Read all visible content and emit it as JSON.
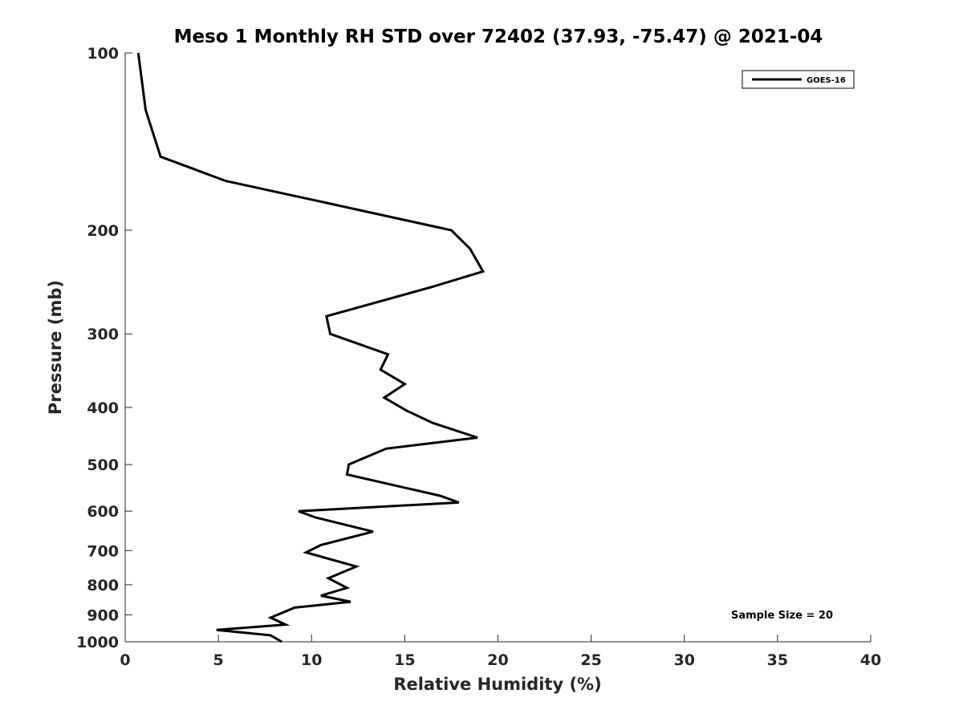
{
  "chart_data": {
    "type": "line",
    "title": "Meso 1 Monthly RH STD over 72402 (37.93, -75.47) @ 2021-04",
    "xlabel": "Relative Humidity (%)",
    "ylabel": "Pressure (mb)",
    "xlim": [
      0,
      40
    ],
    "ylim": [
      100,
      1000
    ],
    "y_scale": "log",
    "y_reversed": true,
    "x_ticks": [
      "0",
      "5",
      "10",
      "15",
      "20",
      "25",
      "30",
      "35",
      "40"
    ],
    "y_ticks": [
      "100",
      "200",
      "300",
      "400",
      "500",
      "600",
      "700",
      "800",
      "900",
      "1000"
    ],
    "grid": false,
    "legend_position": "top-right",
    "annotation": "Sample Size = 20",
    "colors": {
      "series": "#000000",
      "axes": "#262626"
    },
    "series": [
      {
        "name": "GOES-16",
        "points": [
          {
            "x": 0.7,
            "y": 100
          },
          {
            "x": 1.1,
            "y": 125
          },
          {
            "x": 1.9,
            "y": 150
          },
          {
            "x": 5.4,
            "y": 165
          },
          {
            "x": 10.9,
            "y": 180
          },
          {
            "x": 17.5,
            "y": 200
          },
          {
            "x": 18.5,
            "y": 215
          },
          {
            "x": 19.2,
            "y": 235
          },
          {
            "x": 16.4,
            "y": 250
          },
          {
            "x": 10.8,
            "y": 280
          },
          {
            "x": 11.0,
            "y": 300
          },
          {
            "x": 14.1,
            "y": 325
          },
          {
            "x": 13.7,
            "y": 345
          },
          {
            "x": 15.0,
            "y": 365
          },
          {
            "x": 13.9,
            "y": 385
          },
          {
            "x": 15.1,
            "y": 405
          },
          {
            "x": 16.5,
            "y": 425
          },
          {
            "x": 18.9,
            "y": 450
          },
          {
            "x": 14.0,
            "y": 470
          },
          {
            "x": 12.0,
            "y": 500
          },
          {
            "x": 11.9,
            "y": 520
          },
          {
            "x": 16.9,
            "y": 565
          },
          {
            "x": 17.9,
            "y": 580
          },
          {
            "x": 9.3,
            "y": 600
          },
          {
            "x": 10.2,
            "y": 615
          },
          {
            "x": 13.3,
            "y": 650
          },
          {
            "x": 10.5,
            "y": 685
          },
          {
            "x": 9.7,
            "y": 705
          },
          {
            "x": 12.4,
            "y": 745
          },
          {
            "x": 10.9,
            "y": 780
          },
          {
            "x": 11.9,
            "y": 810
          },
          {
            "x": 10.5,
            "y": 835
          },
          {
            "x": 12.1,
            "y": 855
          },
          {
            "x": 9.1,
            "y": 875
          },
          {
            "x": 7.8,
            "y": 910
          },
          {
            "x": 8.6,
            "y": 935
          },
          {
            "x": 4.9,
            "y": 955
          },
          {
            "x": 7.8,
            "y": 975
          },
          {
            "x": 8.4,
            "y": 1000
          }
        ]
      }
    ]
  }
}
